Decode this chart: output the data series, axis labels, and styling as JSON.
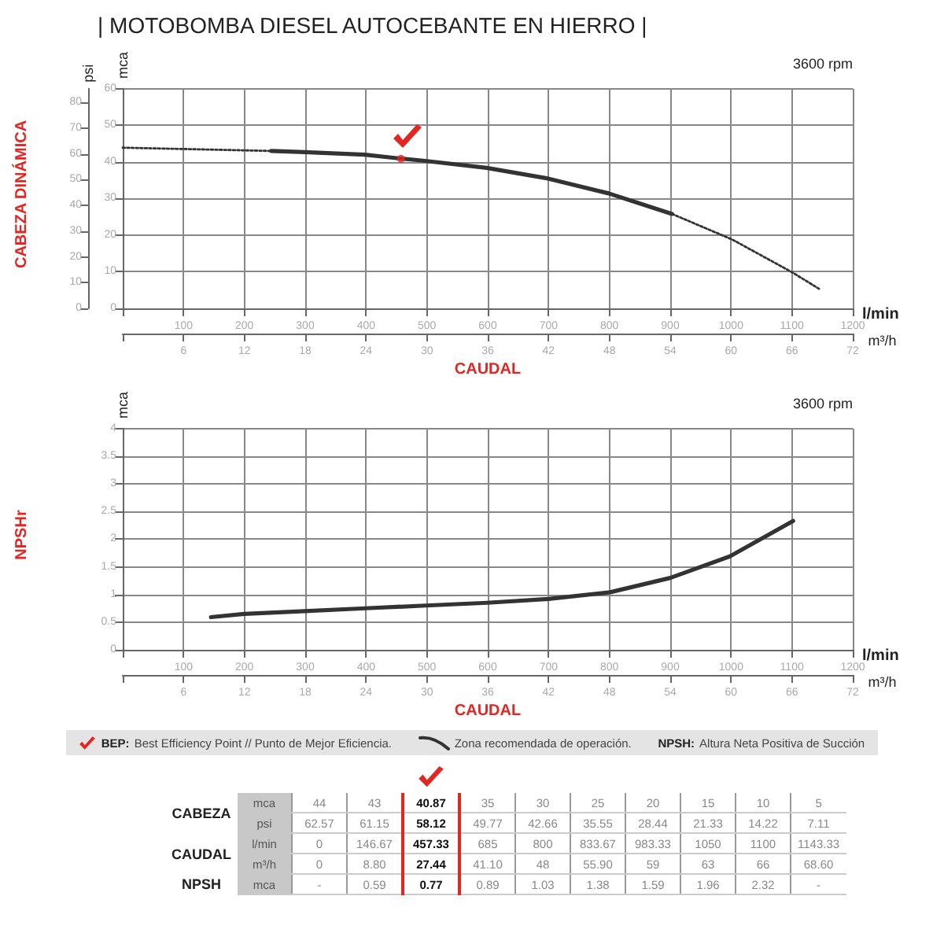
{
  "chart_data": [
    {
      "type": "line",
      "title": "| MOTOBOMBA DIESEL AUTOCEBANTE EN HIERRO |",
      "xlabel": "CAUDAL",
      "ylabel": "mca",
      "y2label": "psi",
      "x2label": "m³/h",
      "annotations": [
        "CABEZA DINÁMICA",
        "l/min",
        "3600 rpm"
      ],
      "xlim": [
        0,
        1200
      ],
      "xticks": [
        {
          "value": 0,
          "label": null
        },
        100,
        200,
        300,
        400,
        500,
        600,
        700,
        800,
        900,
        1000,
        1100,
        1200
      ],
      "x2lim": [
        0,
        72
      ],
      "x2ticks": [
        {
          "value": 0,
          "label": null
        },
        6,
        12,
        18,
        24,
        30,
        36,
        42,
        48,
        54,
        60,
        66,
        72
      ],
      "ylim": [
        0,
        60
      ],
      "yticks": [
        0,
        10,
        20,
        30,
        40,
        50,
        60
      ],
      "y2lim": [
        0,
        85.3
      ],
      "y2ticks": [
        0,
        10,
        20,
        30,
        40,
        50,
        60,
        70,
        80
      ],
      "grid": true,
      "marker": "none",
      "series": [
        {
          "color": "#333333",
          "line_style": "dotted",
          "x": [
            0,
            244
          ],
          "values": [
            43.9,
            43.0
          ]
        },
        {
          "color": "#333333",
          "line_style": "solid",
          "x": [
            244,
            299,
            398,
            447,
            497,
            598,
            695,
            799,
            903
          ],
          "values": [
            43.0,
            42.7,
            42.0,
            41.1,
            40.3,
            38.4,
            35.6,
            31.4,
            25.8
          ]
        },
        {
          "color": "#333333",
          "line_style": "dotted",
          "x": [
            903,
            1002,
            1101,
            1146
          ],
          "values": [
            25.8,
            18.8,
            9.8,
            5.2
          ]
        },
        {
          "type": "scatter",
          "marker": "circle",
          "color": "#e52521",
          "x": [
            457.33
          ],
          "values": [
            40.87
          ]
        }
      ]
    },
    {
      "type": "line",
      "xlabel": "CAUDAL",
      "ylabel": "mca",
      "x2label": "m³/h",
      "annotations": [
        "NPSHr",
        "l/min",
        "3600 rpm"
      ],
      "xlim": [
        0,
        1200
      ],
      "xticks": [
        {
          "value": 0,
          "label": null
        },
        100,
        200,
        300,
        400,
        500,
        600,
        700,
        800,
        900,
        1000,
        1100,
        1200
      ],
      "x2lim": [
        0,
        72
      ],
      "x2ticks": [
        {
          "value": 0,
          "label": null
        },
        6,
        12,
        18,
        24,
        30,
        36,
        42,
        48,
        54,
        60,
        66,
        72
      ],
      "ylim": [
        0,
        4
      ],
      "yticks": [
        0,
        0.5,
        1,
        1.5,
        2,
        2.5,
        3,
        3.5,
        4
      ],
      "grid": true,
      "marker": "none",
      "series": [
        {
          "color": "#333333",
          "line_style": "solid",
          "x": [
            145,
            200,
            299,
            399,
            498,
            599,
            700,
            801,
            900,
            998,
            1102
          ],
          "values": [
            0.59,
            0.65,
            0.7,
            0.75,
            0.8,
            0.85,
            0.92,
            1.04,
            1.3,
            1.69,
            2.33
          ]
        }
      ]
    },
    {
      "type": "other",
      "annotations": [
        "BEP: Best Efficiency Point // Punto de Mejor Eficiencia.",
        "Zona recomendada de operación.",
        "NPSH: Altura Neta Positiva de Succión",
        "CABEZA",
        "CAUDAL",
        "NPSH",
        "mca",
        "psi",
        "l/min",
        "m³/h",
        "mca",
        "44",
        "43",
        "40.87",
        "35",
        "30",
        "25",
        "20",
        "15",
        "10",
        "5",
        "62.57",
        "61.15",
        "58.12",
        "49.77",
        "42.66",
        "35.55",
        "28.44",
        "21.33",
        "14.22",
        "7.11",
        "0",
        "146.67",
        "457.33",
        "685",
        "800",
        "833.67",
        "983.33",
        "1050",
        "1100",
        "1143.33",
        "0",
        "8.80",
        "27.44",
        "41.10",
        "48",
        "55.90",
        "59",
        "63",
        "66",
        "68.60",
        "-",
        "0.59",
        "0.77",
        "0.89",
        "1.03",
        "1.38",
        "1.59",
        "1.96",
        "2.32",
        "-"
      ]
    }
  ]
}
